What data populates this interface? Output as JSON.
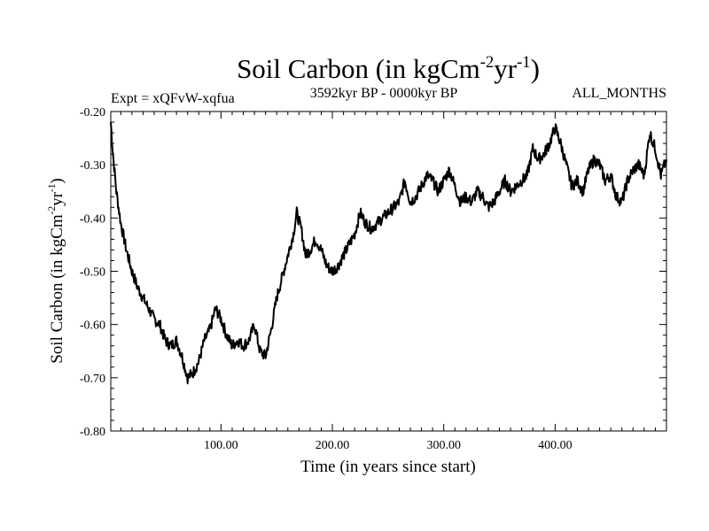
{
  "chart_data": {
    "type": "line",
    "title_main": "Soil Carbon (in kgCm",
    "title_sup1": "-2",
    "title_mid": "yr",
    "title_sup2": "-1",
    "title_end": ")",
    "subtitle_left": "Expt = xQFvW-xqfua",
    "subtitle_center": "3592kyr BP - 0000kyr BP",
    "subtitle_right": "ALL_MONTHS",
    "xlabel": "Time (in years since start)",
    "ylabel_main": "Soil Carbon (in kgCm",
    "ylabel_sup1": "-2",
    "ylabel_mid": "yr",
    "ylabel_sup2": "-1",
    "ylabel_end": ")",
    "xlim": [
      1,
      500
    ],
    "ylim": [
      -0.8,
      -0.2
    ],
    "x_ticks": [
      100,
      200,
      300,
      400
    ],
    "x_tick_labels": [
      "100.00",
      "200.00",
      "300.00",
      "400.00"
    ],
    "y_ticks": [
      -0.2,
      -0.3,
      -0.4,
      -0.5,
      -0.6,
      -0.7,
      -0.8
    ],
    "y_tick_labels": [
      "-0.20",
      "-0.30",
      "-0.40",
      "-0.50",
      "-0.60",
      "-0.70",
      "-0.80"
    ],
    "series": [
      {
        "name": "Soil Carbon",
        "color": "#000000",
        "x": [
          1,
          3,
          6,
          10,
          15,
          20,
          25,
          30,
          35,
          40,
          45,
          50,
          55,
          60,
          65,
          70,
          75,
          80,
          85,
          90,
          95,
          100,
          105,
          110,
          115,
          120,
          125,
          130,
          135,
          140,
          145,
          150,
          155,
          160,
          165,
          168,
          172,
          176,
          180,
          185,
          190,
          195,
          200,
          205,
          210,
          215,
          220,
          225,
          230,
          235,
          240,
          245,
          250,
          255,
          260,
          265,
          270,
          275,
          280,
          285,
          290,
          295,
          300,
          305,
          310,
          315,
          320,
          325,
          330,
          335,
          340,
          345,
          350,
          355,
          360,
          365,
          370,
          375,
          380,
          385,
          390,
          395,
          400,
          405,
          410,
          415,
          420,
          425,
          430,
          435,
          440,
          445,
          450,
          455,
          460,
          465,
          470,
          475,
          480,
          485,
          490,
          495,
          500
        ],
        "y": [
          -0.22,
          -0.28,
          -0.35,
          -0.41,
          -0.46,
          -0.5,
          -0.53,
          -0.55,
          -0.57,
          -0.59,
          -0.6,
          -0.63,
          -0.64,
          -0.63,
          -0.66,
          -0.7,
          -0.69,
          -0.67,
          -0.63,
          -0.61,
          -0.57,
          -0.59,
          -0.62,
          -0.64,
          -0.63,
          -0.64,
          -0.63,
          -0.6,
          -0.65,
          -0.66,
          -0.61,
          -0.55,
          -0.51,
          -0.47,
          -0.43,
          -0.39,
          -0.42,
          -0.47,
          -0.46,
          -0.44,
          -0.46,
          -0.49,
          -0.5,
          -0.49,
          -0.47,
          -0.45,
          -0.43,
          -0.39,
          -0.41,
          -0.42,
          -0.41,
          -0.4,
          -0.39,
          -0.38,
          -0.37,
          -0.33,
          -0.37,
          -0.36,
          -0.34,
          -0.32,
          -0.33,
          -0.35,
          -0.33,
          -0.31,
          -0.34,
          -0.37,
          -0.36,
          -0.37,
          -0.35,
          -0.36,
          -0.38,
          -0.37,
          -0.35,
          -0.33,
          -0.35,
          -0.34,
          -0.33,
          -0.32,
          -0.27,
          -0.29,
          -0.28,
          -0.26,
          -0.23,
          -0.26,
          -0.3,
          -0.34,
          -0.33,
          -0.35,
          -0.31,
          -0.29,
          -0.3,
          -0.33,
          -0.32,
          -0.36,
          -0.37,
          -0.33,
          -0.31,
          -0.3,
          -0.32,
          -0.24,
          -0.27,
          -0.32,
          -0.29
        ]
      }
    ]
  }
}
